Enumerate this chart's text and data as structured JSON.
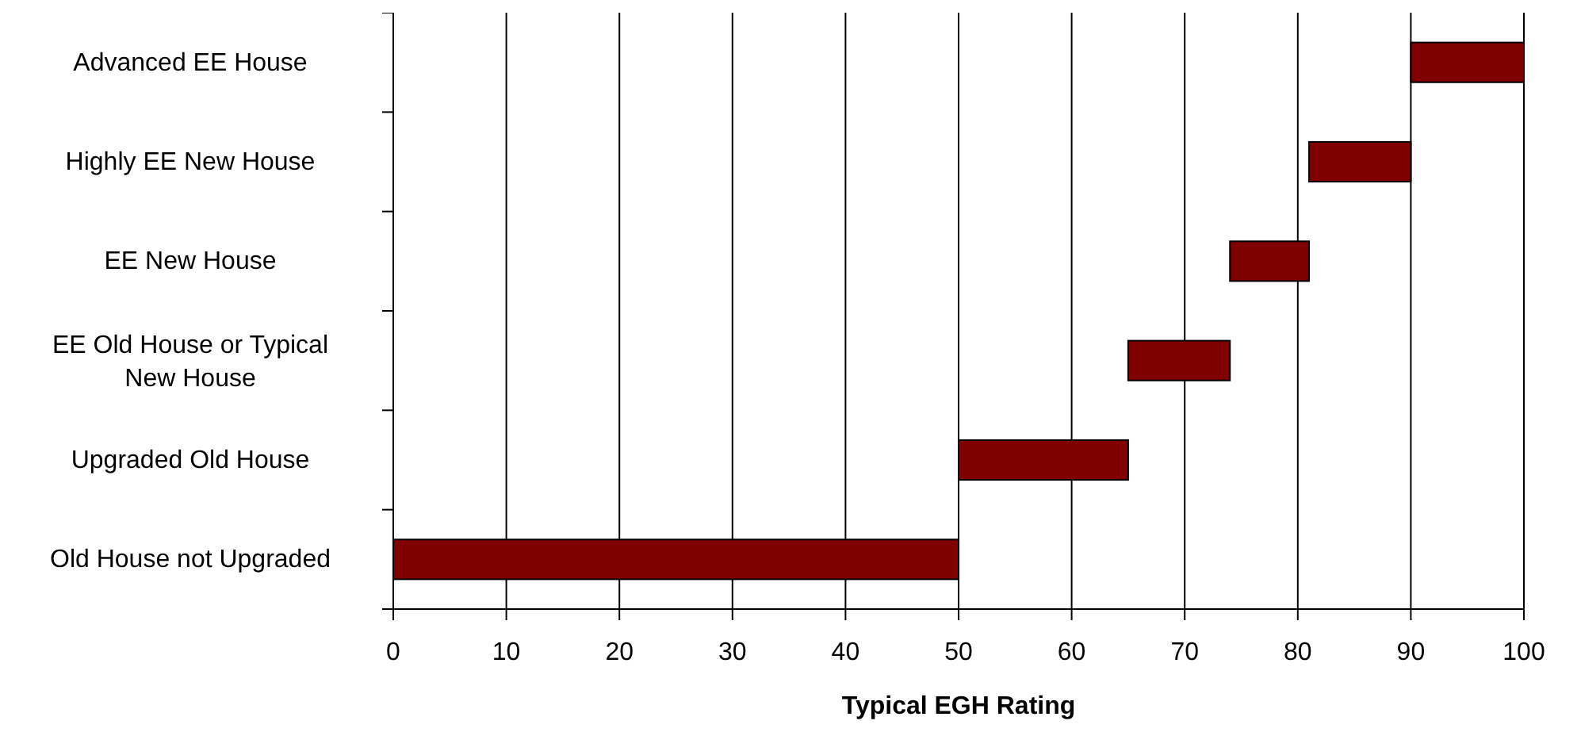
{
  "chart_data": {
    "type": "bar",
    "orientation": "horizontal",
    "xlabel": "Typical EGH Rating",
    "categories": [
      "Advanced EE House",
      "Highly EE New House",
      "EE New House",
      "EE Old House or Typical New House",
      "Upgraded Old House",
      "Old House not Upgraded"
    ],
    "base": [
      90,
      81,
      74,
      65,
      50,
      0
    ],
    "values": [
      10,
      9,
      7,
      9,
      15,
      50
    ],
    "color": "#800000",
    "xlim": [
      0,
      100
    ],
    "xticks": [
      0,
      10,
      20,
      30,
      40,
      50,
      60,
      70,
      80,
      90,
      100
    ],
    "grid": "x"
  }
}
